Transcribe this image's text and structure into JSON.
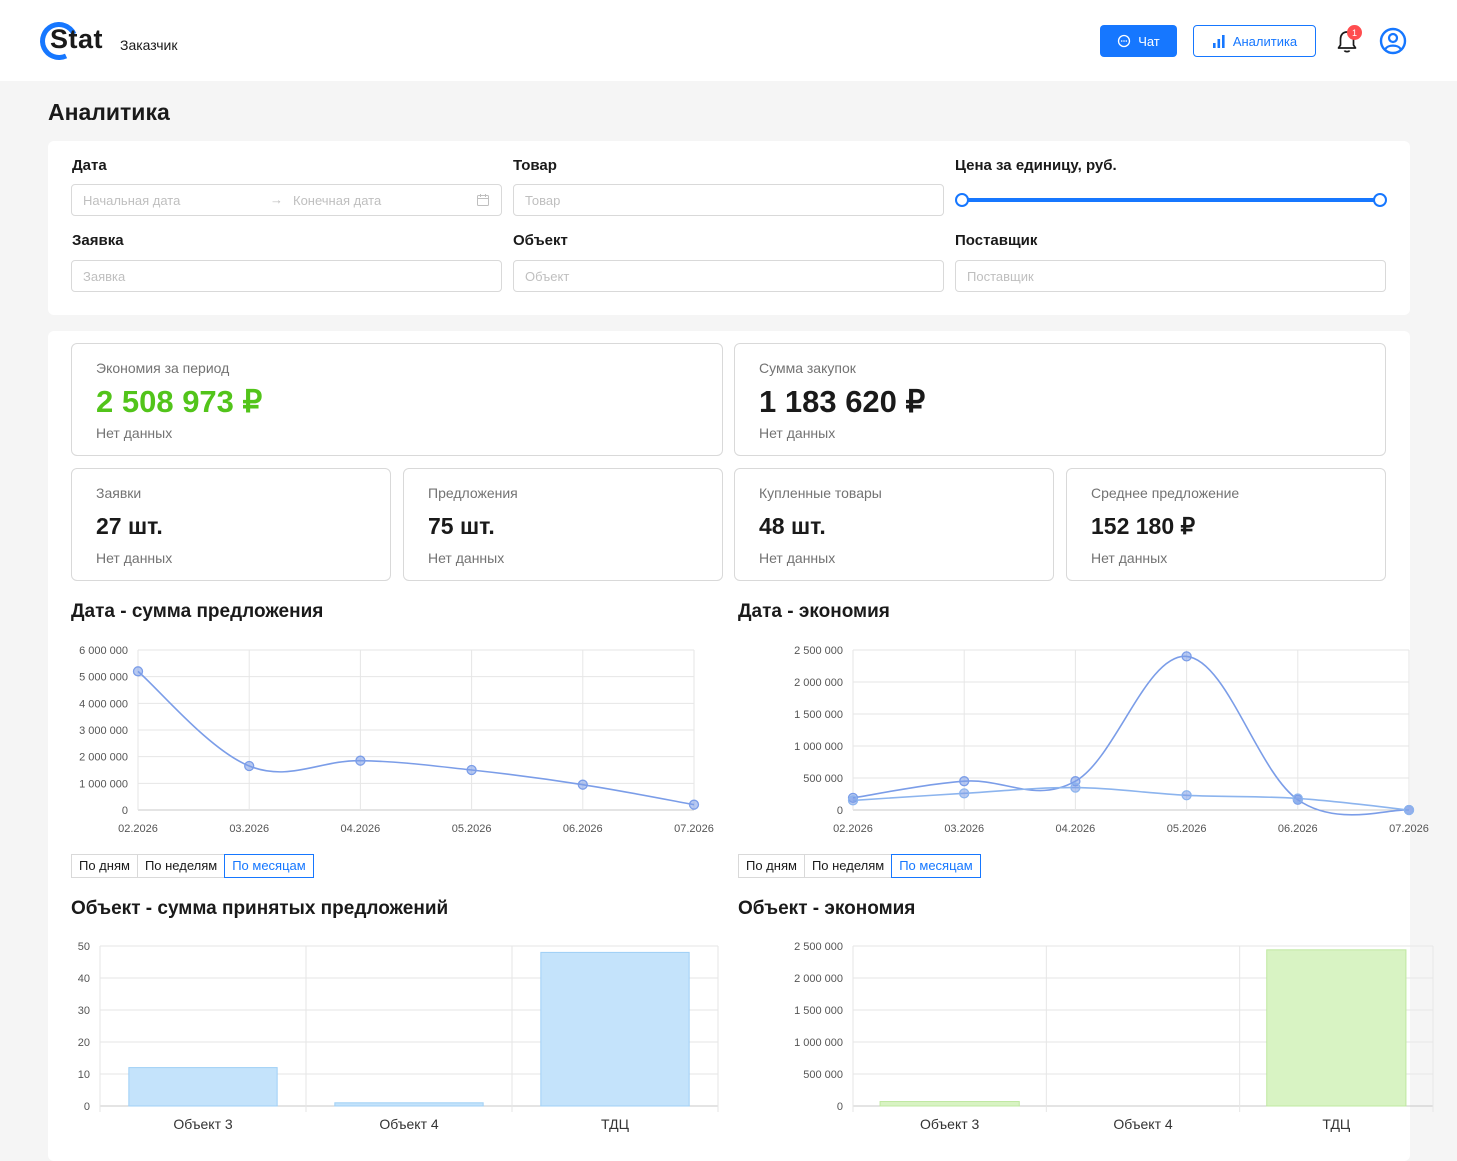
{
  "header": {
    "logo_text": "Stat",
    "role": "Заказчик",
    "chat_label": "Чат",
    "analytics_label": "Аналитика",
    "notifications_count": "1",
    "icons": [
      "chat-icon",
      "bar-chart-icon",
      "bell-icon",
      "user-icon"
    ],
    "accent_color": "#1677ff"
  },
  "page_title": "Аналитика",
  "filters": {
    "date": {
      "label": "Дата",
      "start_placeholder": "Начальная дата",
      "end_placeholder": "Конечная дата"
    },
    "product": {
      "label": "Товар",
      "placeholder": "Товар"
    },
    "price": {
      "label": "Цена за единицу, руб."
    },
    "request": {
      "label": "Заявка",
      "placeholder": "Заявка"
    },
    "object": {
      "label": "Объект",
      "placeholder": "Объект"
    },
    "supplier": {
      "label": "Поставщик",
      "placeholder": "Поставщик"
    }
  },
  "stats": {
    "savings": {
      "title": "Экономия за период",
      "value": "2 508 973 ₽",
      "sub": "Нет данных",
      "color": "#52c41a"
    },
    "purchases": {
      "title": "Сумма закупок",
      "value": "1 183 620 ₽",
      "sub": "Нет данных"
    },
    "requests": {
      "title": "Заявки",
      "value": "27 шт.",
      "sub": "Нет данных"
    },
    "offers": {
      "title": "Предложения",
      "value": "75 шт.",
      "sub": "Нет данных"
    },
    "bought": {
      "title": "Купленные товары",
      "value": "48 шт.",
      "sub": "Нет данных"
    },
    "avg_offer": {
      "title": "Среднее предложение",
      "value": "152 180 ₽",
      "sub": "Нет данных"
    }
  },
  "period_options": [
    "По дням",
    "По неделям",
    "По месяцам"
  ],
  "period_selected": "По месяцам",
  "chart_titles": {
    "offers_by_date": "Дата - сумма предложения",
    "savings_by_date": "Дата - экономия",
    "offers_by_object": "Объект - сумма принятых предложений",
    "savings_by_object": "Объект - экономия"
  },
  "chart_data": [
    {
      "type": "line",
      "title": "Дата - сумма предложения",
      "x": [
        "02.2026",
        "03.2026",
        "04.2026",
        "05.2026",
        "06.2026",
        "07.2026"
      ],
      "series": [
        {
          "values": [
            5200000,
            1650000,
            1850000,
            1500000,
            950000,
            200000
          ]
        }
      ],
      "ylim": [
        0,
        6000000
      ],
      "yticks": [
        0,
        1000000,
        2000000,
        3000000,
        4000000,
        5000000,
        6000000
      ],
      "ytick_labels": [
        "0",
        "1 000 000",
        "2 000 000",
        "3 000 000",
        "4 000 000",
        "5 000 000",
        "6 000 000"
      ],
      "grid": true,
      "color": "#7b9de8"
    },
    {
      "type": "line",
      "title": "Дата - экономия",
      "x": [
        "02.2026",
        "03.2026",
        "04.2026",
        "05.2026",
        "06.2026",
        "07.2026"
      ],
      "series": [
        {
          "values": [
            190000,
            450000,
            450000,
            2400000,
            160000,
            0
          ]
        },
        {
          "values": [
            150000,
            260000,
            350000,
            230000,
            180000,
            0
          ]
        }
      ],
      "ylim": [
        0,
        2500000
      ],
      "yticks": [
        0,
        500000,
        1000000,
        1500000,
        2000000,
        2500000
      ],
      "ytick_labels": [
        "0",
        "500 000",
        "1 000 000",
        "1 500 000",
        "2 000 000",
        "2 500 000"
      ],
      "grid": true,
      "colors": [
        "#7b9de8",
        "#8cb4ee"
      ]
    },
    {
      "type": "bar",
      "title": "Объект - сумма принятых предложений",
      "categories": [
        "Объект 3",
        "Объект 4",
        "ТДЦ"
      ],
      "values": [
        12,
        1,
        48
      ],
      "ylim": [
        0,
        50
      ],
      "yticks": [
        0,
        10,
        20,
        30,
        40,
        50
      ],
      "ytick_labels": [
        "0",
        "10",
        "20",
        "30",
        "40",
        "50"
      ],
      "grid": true,
      "fill": "#c4e3fb",
      "stroke": "#9fcff6"
    },
    {
      "type": "bar",
      "title": "Объект - экономия",
      "categories": [
        "Объект 3",
        "Объект 4",
        "ТДЦ"
      ],
      "values": [
        70000,
        0,
        2440000
      ],
      "ylim": [
        0,
        2500000
      ],
      "yticks": [
        0,
        500000,
        1000000,
        1500000,
        2000000,
        2500000
      ],
      "ytick_labels": [
        "0",
        "500 000",
        "1 000 000",
        "1 500 000",
        "2 000 000",
        "2 500 000"
      ],
      "grid": true,
      "fill": "#d8f3c3",
      "stroke": "#bfe8a0"
    }
  ]
}
